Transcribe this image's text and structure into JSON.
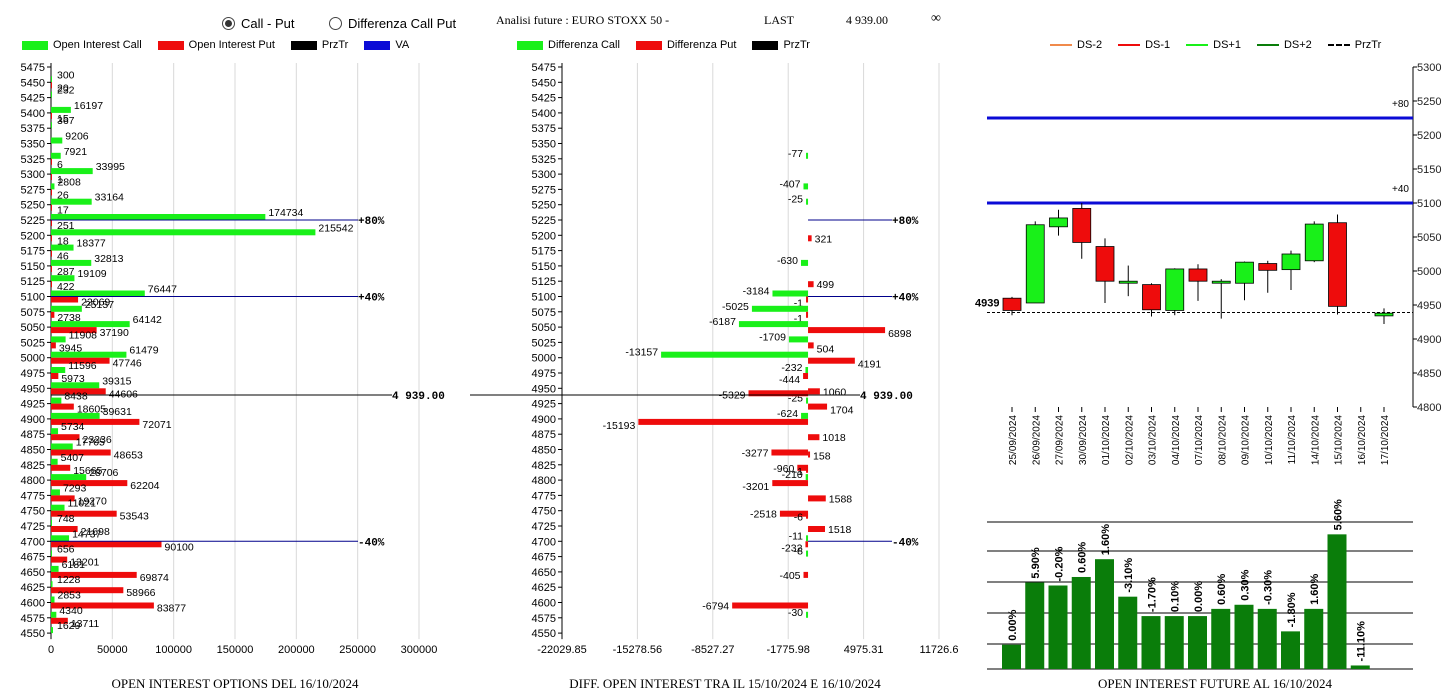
{
  "header": {
    "radio_call_put": "Call - Put",
    "radio_diff": "Differenza Call Put",
    "title": "Analisi future : EURO STOXX 50 -",
    "last_label": "LAST",
    "last_value": "4 939.00",
    "infinity": "∞"
  },
  "colors": {
    "green": "#19f019",
    "red": "#ee0c0c",
    "black": "#000000",
    "blue": "#0b0bd6",
    "navy": "#00008b",
    "dkgreen": "#0a7d0a",
    "salmon": "#f08a4b"
  },
  "chart_data": [
    {
      "type": "bar",
      "orientation": "horizontal",
      "caption": "OPEN INTEREST OPTIONS DEL 16/10/2024",
      "legend": [
        "Open Interest Call",
        "Open Interest Put",
        "PrzTr",
        "VA"
      ],
      "strikes": [
        5475,
        5450,
        5425,
        5400,
        5375,
        5350,
        5325,
        5300,
        5275,
        5250,
        5225,
        5200,
        5175,
        5150,
        5125,
        5100,
        5075,
        5050,
        5025,
        5000,
        4975,
        4950,
        4925,
        4900,
        4875,
        4850,
        4825,
        4800,
        4775,
        4750,
        4725,
        4700,
        4675,
        4650,
        4625,
        4600,
        4575,
        4550
      ],
      "call": [
        null,
        300,
        232,
        16197,
        367,
        9206,
        7921,
        33995,
        2808,
        33164,
        174734,
        215542,
        18377,
        32813,
        19109,
        76447,
        25157,
        64142,
        11908,
        61479,
        11596,
        39315,
        8438,
        39631,
        5734,
        17705,
        5407,
        28706,
        7293,
        11021,
        748,
        14737,
        656,
        6181,
        1228,
        2853,
        4340,
        1629
      ],
      "put": [
        null,
        20,
        null,
        15,
        null,
        null,
        6,
        1,
        26,
        17,
        251,
        18,
        46,
        287,
        422,
        22069,
        2738,
        37190,
        3945,
        47746,
        5973,
        44606,
        18605,
        72071,
        23236,
        48653,
        15665,
        62204,
        19270,
        53543,
        21698,
        90100,
        13201,
        69874,
        58966,
        83877,
        13711,
        null
      ],
      "xticks": [
        "0",
        "50000",
        "100000",
        "150000",
        "200000",
        "250000",
        "300000"
      ],
      "xlim": [
        0,
        300000
      ],
      "price_label": "4 939.00",
      "markers": [
        {
          "label": "+80%",
          "strike": 5225
        },
        {
          "label": "+40%",
          "strike": 5100
        },
        {
          "label": "-40%",
          "strike": 4700
        }
      ]
    },
    {
      "type": "bar",
      "orientation": "horizontal",
      "caption": "DIFF. OPEN INTEREST TRA IL 15/10/2024 E 16/10/2024",
      "legend": [
        "Differenza Call",
        "Differenza Put",
        "PrzTr"
      ],
      "strikes": [
        5475,
        5450,
        5425,
        5400,
        5375,
        5350,
        5325,
        5300,
        5275,
        5250,
        5225,
        5200,
        5175,
        5150,
        5125,
        5100,
        5075,
        5050,
        5025,
        5000,
        4975,
        4950,
        4925,
        4900,
        4875,
        4850,
        4825,
        4800,
        4775,
        4750,
        4725,
        4700,
        4675,
        4650,
        4625,
        4600,
        4575,
        4550
      ],
      "call_diff": [
        null,
        null,
        null,
        null,
        null,
        null,
        -77,
        null,
        -407,
        -25,
        null,
        null,
        null,
        -630,
        null,
        -3184,
        -5025,
        -6187,
        -1709,
        -13157,
        -232,
        null,
        -25,
        -624,
        null,
        null,
        null,
        -210,
        null,
        null,
        null,
        -11,
        -8,
        null,
        null,
        null,
        -30,
        null
      ],
      "put_diff": [
        null,
        null,
        null,
        null,
        null,
        null,
        null,
        null,
        null,
        null,
        null,
        321,
        null,
        null,
        499,
        -1,
        -1,
        6898,
        504,
        4191,
        -444,
        1060,
        1704,
        -15193,
        1018,
        -3277,
        -960,
        -3201,
        1588,
        -2518,
        1518,
        -232,
        null,
        -405,
        null,
        -6794,
        null,
        null
      ],
      "put_diff_extra": [
        {
          "strike": 4950,
          "value": -5329
        },
        {
          "strike": 4850,
          "value": 158
        },
        {
          "strike": 4825,
          "value": -1
        },
        {
          "strike": 4750,
          "value": -6
        }
      ],
      "xticks": [
        "-22029.85",
        "-15278.56",
        "-8527.27",
        "-1775.98",
        "4975.31",
        "11726.6"
      ],
      "xlim": [
        -22029.85,
        11726.6
      ],
      "price_label": "4 939.00",
      "markers": [
        {
          "label": "+80%",
          "strike": 5225
        },
        {
          "label": "+40%",
          "strike": 5100
        },
        {
          "label": "-40%",
          "strike": 4700
        }
      ]
    },
    {
      "type": "candlestick",
      "legend": [
        "DS-2",
        "DS-1",
        "DS+1",
        "DS+2",
        "PrzTr"
      ],
      "dates": [
        "25/09/2024",
        "26/09/2024",
        "27/09/2024",
        "30/09/2024",
        "01/10/2024",
        "02/10/2024",
        "03/10/2024",
        "04/10/2024",
        "07/10/2024",
        "08/10/2024",
        "09/10/2024",
        "10/10/2024",
        "11/10/2024",
        "14/10/2024",
        "15/10/2024",
        "16/10/2024",
        "17/10/2024"
      ],
      "ohlc": [
        {
          "o": 4960,
          "h": 4962,
          "l": 4935,
          "c": 4942
        },
        {
          "o": 4953,
          "h": 5073,
          "l": 4953,
          "c": 5068
        },
        {
          "o": 5065,
          "h": 5090,
          "l": 5052,
          "c": 5078
        },
        {
          "o": 5092,
          "h": 5100,
          "l": 5018,
          "c": 5042
        },
        {
          "o": 5036,
          "h": 5048,
          "l": 4953,
          "c": 4985
        },
        {
          "o": 4985,
          "h": 5008,
          "l": 4963,
          "c": 4985
        },
        {
          "o": 4980,
          "h": 4982,
          "l": 4933,
          "c": 4943
        },
        {
          "o": 4942,
          "h": 5004,
          "l": 4935,
          "c": 5003
        },
        {
          "o": 5003,
          "h": 5010,
          "l": 4956,
          "c": 4985
        },
        {
          "o": 4983,
          "h": 4988,
          "l": 4930,
          "c": 4985
        },
        {
          "o": 4982,
          "h": 5014,
          "l": 4957,
          "c": 5013
        },
        {
          "o": 5011,
          "h": 5015,
          "l": 4968,
          "c": 5001
        },
        {
          "o": 5002,
          "h": 5030,
          "l": 4972,
          "c": 5025
        },
        {
          "o": 5015,
          "h": 5073,
          "l": 5013,
          "c": 5069
        },
        {
          "o": 5071,
          "h": 5083,
          "l": 4936,
          "c": 4948
        },
        {
          "o": null,
          "h": null,
          "l": null,
          "c": null
        },
        {
          "o": 4934,
          "h": 4945,
          "l": 4922,
          "c": 4938
        }
      ],
      "yticks": [
        "5300",
        "5250",
        "5200",
        "5150",
        "5100",
        "5050",
        "5000",
        "4950",
        "4900",
        "4850",
        "4800"
      ],
      "ylim": [
        4800,
        5300
      ],
      "price_marker": "4939",
      "price": 4939,
      "levels": [
        {
          "label": "+80",
          "value": 5225
        },
        {
          "label": "+40",
          "value": 5100
        }
      ]
    },
    {
      "type": "bar",
      "caption": "OPEN INTEREST FUTURE AL 16/10/2024",
      "labels": [
        "0.00%",
        "5.90%",
        "-0.20%",
        "0.60%",
        "1.60%",
        "-3.10%",
        "-1.70%",
        "0.10%",
        "0.00%",
        "0.60%",
        "0.30%",
        "-0.30%",
        "-1.80%",
        "1.60%",
        "5.60%",
        "-11.10%"
      ],
      "values": [
        0.165,
        0.588,
        0.568,
        0.626,
        0.747,
        0.492,
        0.36,
        0.36,
        0.36,
        0.409,
        0.437,
        0.409,
        0.256,
        0.409,
        0.916,
        0.024
      ]
    }
  ]
}
